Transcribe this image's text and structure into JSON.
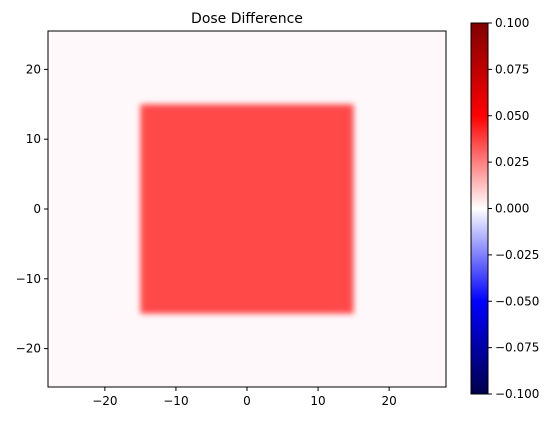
{
  "chart_data": {
    "type": "heatmap",
    "title": "Dose Difference",
    "xlabel": "",
    "ylabel": "",
    "xlim": [
      -28,
      28
    ],
    "ylim": [
      -25.5,
      25.5
    ],
    "x_ticks": [
      -20,
      -10,
      0,
      10,
      20
    ],
    "y_ticks": [
      -20,
      -10,
      0,
      10,
      20
    ],
    "colormap": "seismic",
    "colorbar": {
      "vmin": -0.1,
      "vmax": 0.1,
      "ticks": [
        -0.1,
        -0.075,
        -0.05,
        -0.025,
        0.0,
        0.025,
        0.05,
        0.075,
        0.1
      ],
      "tick_labels": [
        "−0.100",
        "−0.075",
        "−0.050",
        "−0.025",
        "0.000",
        "0.025",
        "0.050",
        "0.075",
        "0.100"
      ]
    },
    "field": {
      "background_value": 0.0005,
      "square": {
        "x_range": [
          -15,
          15
        ],
        "y_range": [
          -15,
          15
        ],
        "value": 0.035,
        "edge_falloff": 1.0
      }
    },
    "grid": false,
    "colors": {
      "square": "#ff4a4a",
      "background": "#fff8fb"
    }
  }
}
